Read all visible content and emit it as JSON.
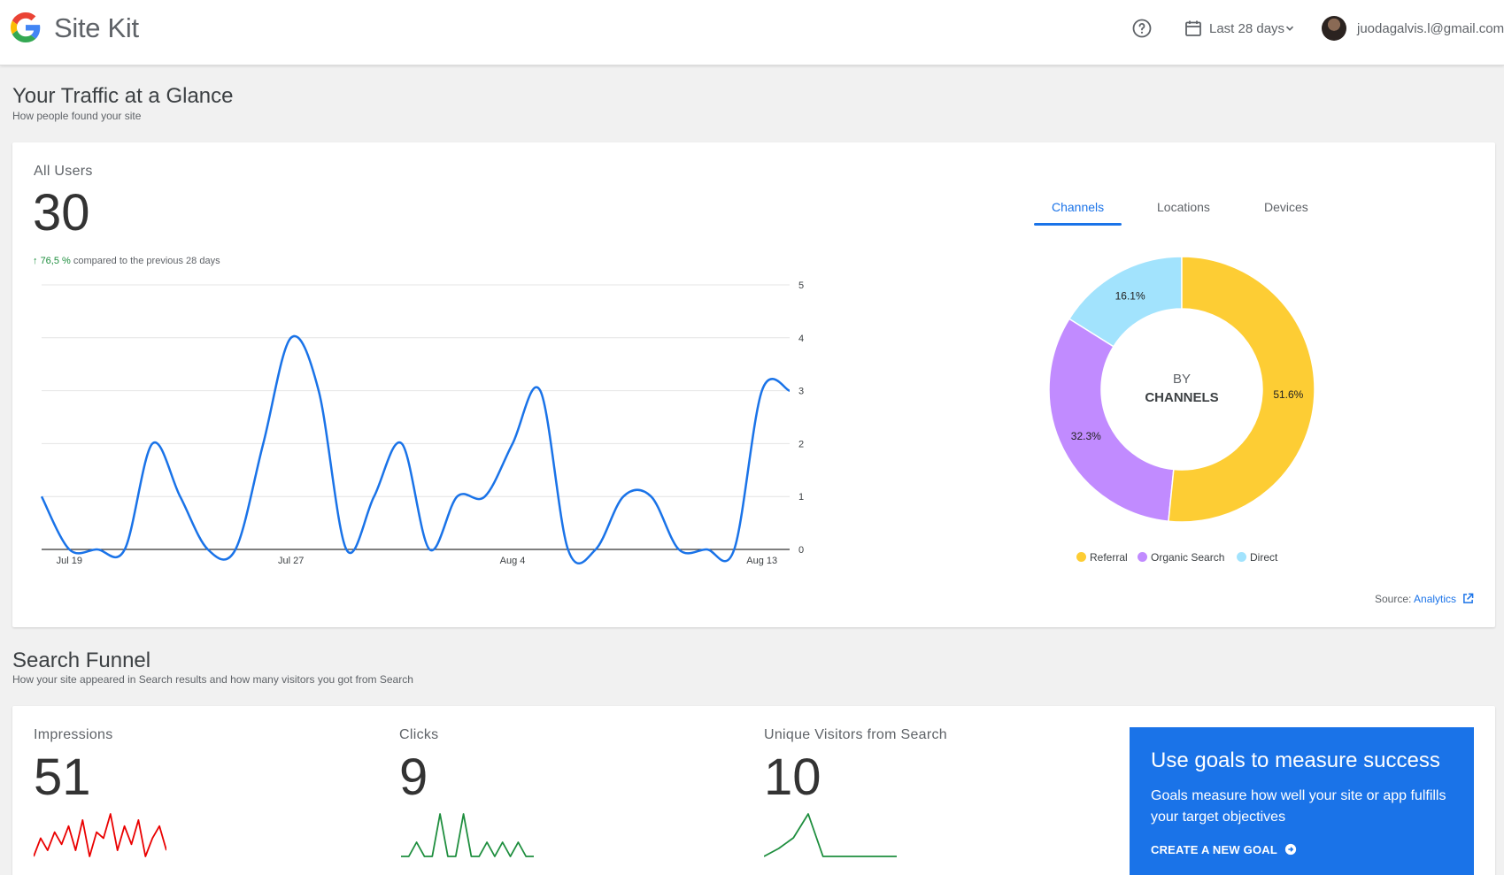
{
  "header": {
    "brand": "Site Kit",
    "date_range": "Last 28 days",
    "account_email": "juodagalvis.l@gmail.com"
  },
  "traffic": {
    "title": "Your Traffic at a Glance",
    "subtitle": "How people found your site",
    "metric_label": "All Users",
    "metric_value": "30",
    "change_pct": "76,5 %",
    "change_text": "compared to the previous 28 days",
    "tabs": [
      "Channels",
      "Locations",
      "Devices"
    ],
    "active_tab": "Channels",
    "donut_center_top": "BY",
    "donut_center_bottom": "CHANNELS",
    "source_label": "Source:",
    "source_link": "Analytics"
  },
  "chart_data": [
    {
      "type": "line",
      "x_labels": [
        "Jul 19",
        "Jul 27",
        "Aug 4",
        "Aug 13"
      ],
      "x_label_days": [
        1,
        9,
        17,
        26
      ],
      "x": [
        0,
        1,
        2,
        3,
        4,
        5,
        6,
        7,
        8,
        9,
        10,
        11,
        12,
        13,
        14,
        15,
        16,
        17,
        18,
        19,
        20,
        21,
        22,
        23,
        24,
        25,
        26,
        27
      ],
      "values": [
        1,
        0,
        0,
        0,
        2,
        1,
        0,
        0,
        2,
        4,
        3,
        0,
        1,
        2,
        0,
        1,
        1,
        2,
        3,
        0,
        0,
        1,
        1,
        0,
        0,
        0,
        3,
        3
      ],
      "series": [
        {
          "values": [
            1,
            0,
            0,
            0,
            2,
            1,
            0,
            0,
            2,
            4,
            3,
            0,
            1,
            2,
            0,
            1,
            1,
            2,
            3,
            0,
            0,
            1,
            1,
            0,
            0,
            0,
            3,
            3
          ]
        }
      ],
      "y_ticks": [
        0,
        1,
        2,
        3,
        4,
        5
      ],
      "ylim": [
        0,
        5
      ],
      "grid": true,
      "color": "#1a73e8"
    },
    {
      "type": "pie",
      "categories": [
        "Referral",
        "Organic Search",
        "Direct"
      ],
      "values": [
        51.6,
        32.3,
        16.1
      ],
      "labels": [
        "51.6%",
        "32.3%",
        "16.1%"
      ],
      "colors": [
        "#fdcd34",
        "#c18bff",
        "#a2e3fd"
      ],
      "legend": "bottom"
    }
  ],
  "funnel": {
    "title": "Search Funnel",
    "subtitle": "How your site appeared in Search results and how many visitors you got from Search",
    "metrics": [
      {
        "label": "Impressions",
        "value": "51",
        "color": "#ea0000",
        "spark": [
          2,
          5,
          3,
          6,
          4,
          7,
          3,
          8,
          2,
          6,
          5,
          9,
          3,
          7,
          4,
          8,
          2,
          5,
          7,
          3
        ]
      },
      {
        "label": "Clicks",
        "value": "9",
        "color": "#1e8e3e",
        "spark": [
          0,
          0,
          1,
          0,
          0,
          3,
          0,
          0,
          3,
          0,
          0,
          1,
          0,
          1,
          0,
          1,
          0,
          0
        ]
      },
      {
        "label": "Unique Visitors from Search",
        "value": "10",
        "color": "#1e8e3e",
        "spark": [
          0,
          0.3,
          0.7,
          1.6,
          0,
          0,
          0,
          0,
          0,
          0
        ]
      }
    ]
  },
  "goal": {
    "title": "Use goals to measure success",
    "description": "Goals measure how well your site or app fulfills your target objectives",
    "cta": "CREATE A NEW GOAL"
  }
}
